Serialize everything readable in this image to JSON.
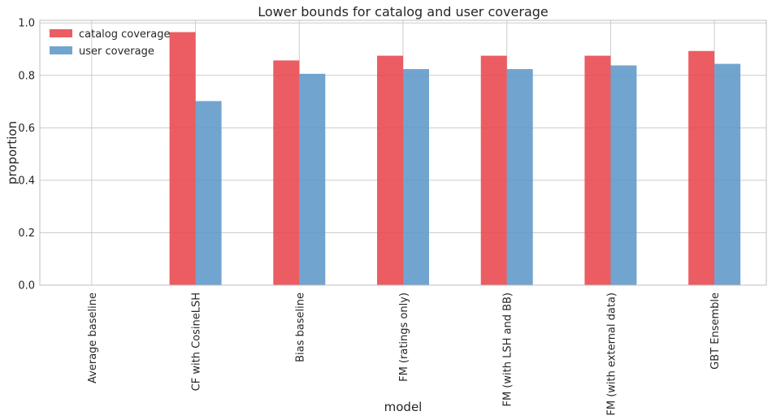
{
  "chart_data": {
    "type": "bar",
    "title": "Lower bounds for catalog and user coverage",
    "xlabel": "model",
    "ylabel": "proportion",
    "categories": [
      "Average baseline",
      "CF with CosineLSH",
      "Bias baseline",
      "FM (ratings only)",
      "FM (with LSH and BB)",
      "FM (with external data)",
      "GBT Ensemble"
    ],
    "series": [
      {
        "name": "catalog coverage",
        "color": "#e8474c",
        "values": [
          0.0,
          0.965,
          0.857,
          0.875,
          0.875,
          0.875,
          0.893
        ]
      },
      {
        "name": "user coverage",
        "color": "#5e97c9",
        "values": [
          0.0,
          0.702,
          0.806,
          0.824,
          0.824,
          0.838,
          0.844
        ]
      }
    ],
    "ylim": [
      0,
      1.01
    ],
    "yticks": [
      "0.0",
      "0.2",
      "0.4",
      "0.6",
      "0.8",
      "1.0"
    ],
    "grid": true,
    "legend_position": "top-left",
    "colors": {
      "grid": "#cccccc",
      "frame": "#bfbfbf",
      "text": "#262626"
    }
  }
}
